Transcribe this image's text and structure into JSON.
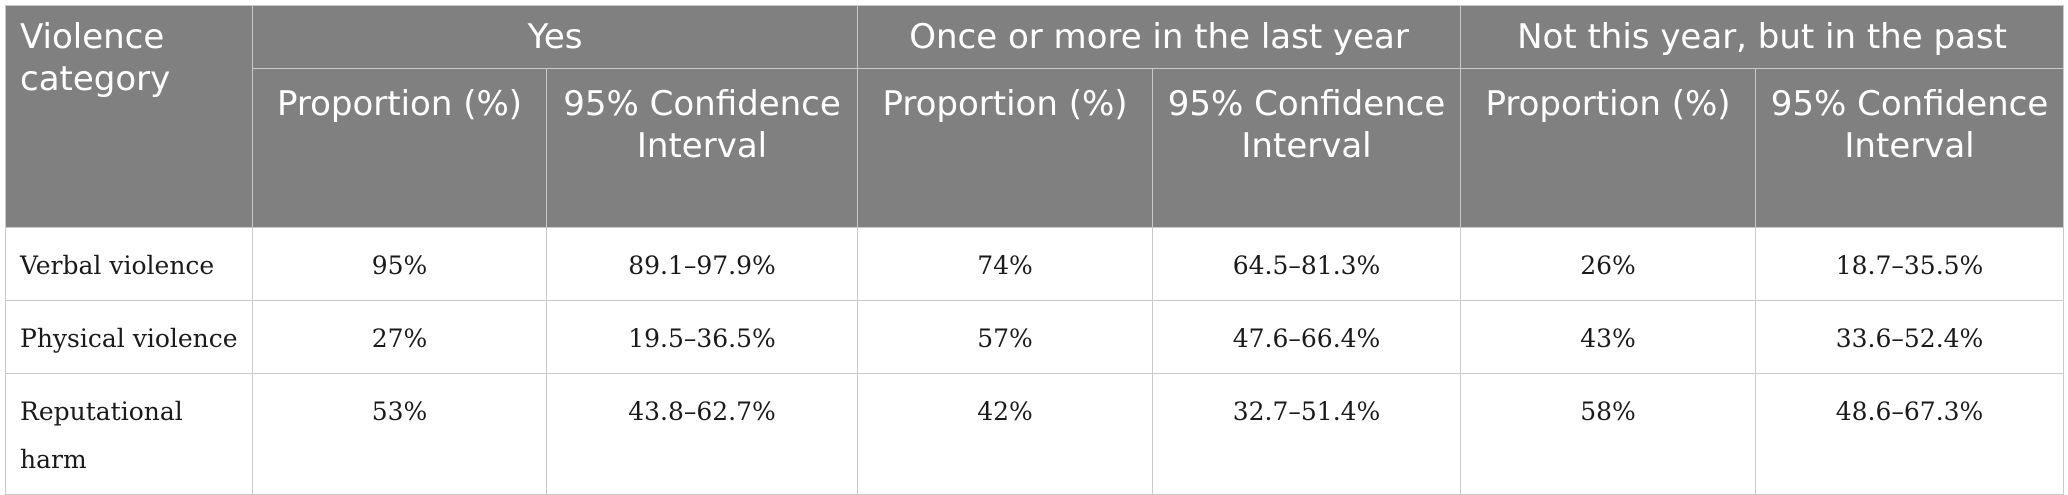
{
  "table": {
    "corner_header": "Violence category",
    "groups": [
      "Yes",
      "Once or more in the last year",
      "Not this year, but in the past"
    ],
    "subheaders": {
      "proportion": "Proportion (%)",
      "ci": "95% Confidence Interval"
    },
    "rows": [
      {
        "category": "Verbal violence",
        "yes_prop": "95%",
        "yes_ci": "89.1–97.9%",
        "last_prop": "74%",
        "last_ci": "64.5–81.3%",
        "past_prop": "26%",
        "past_ci": "18.7–35.5%"
      },
      {
        "category": "Physical violence",
        "yes_prop": "27%",
        "yes_ci": "19.5–36.5%",
        "last_prop": "57%",
        "last_ci": "47.6–66.4%",
        "past_prop": "43%",
        "past_ci": "33.6–52.4%"
      },
      {
        "category": "Reputational harm",
        "yes_prop": "53%",
        "yes_ci": "43.8–62.7%",
        "last_prop": "42%",
        "last_ci": "32.7–51.4%",
        "past_prop": "58%",
        "past_ci": "48.6–67.3%"
      }
    ]
  },
  "colors": {
    "header_bg": "#7f807f",
    "header_text": "#ffffff",
    "border": "#c9c9c9"
  }
}
